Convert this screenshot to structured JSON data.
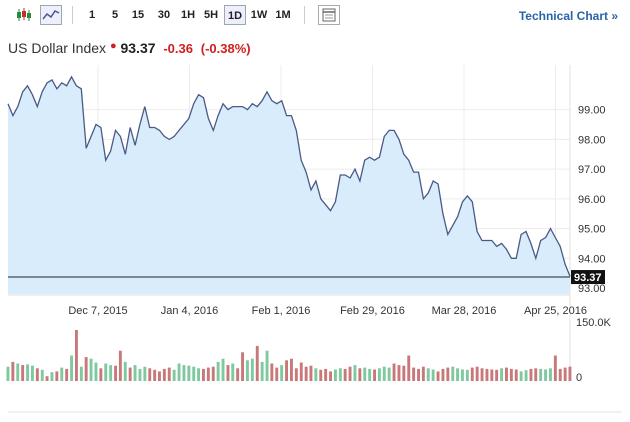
{
  "toolbar": {
    "intervals": [
      "1",
      "5",
      "15",
      "30",
      "1H",
      "5H",
      "1D",
      "1W",
      "1M"
    ],
    "active_interval": "1D",
    "technical_chart_label": "Technical Chart »"
  },
  "quote": {
    "name": "US Dollar Index",
    "price": "93.37",
    "change": "-0.36",
    "change_pct": "(-0.38%)"
  },
  "colors": {
    "line": "#4a5a86",
    "area": "#d8ecfc",
    "up_volume": "#7fc9a0",
    "down_volume": "#c9787a",
    "last_price_bg": "#111111"
  },
  "chart_data": {
    "type": "area",
    "x_ticks": [
      "Dec 7, 2015",
      "Jan 4, 2016",
      "Feb 1, 2016",
      "Feb 29, 2016",
      "Mar 28, 2016",
      "Apr 25, 2016"
    ],
    "y_ticks": [
      "99.00",
      "98.00",
      "97.00",
      "96.00",
      "95.00",
      "94.00",
      "93.00"
    ],
    "ylim": [
      92.8,
      100.5
    ],
    "last_price_label": "93.37",
    "values": [
      99.2,
      98.8,
      99.1,
      99.6,
      99.8,
      99.5,
      99.1,
      99.6,
      99.9,
      100.0,
      99.7,
      99.9,
      99.8,
      100.1,
      99.8,
      99.7,
      97.7,
      98.1,
      98.5,
      98.4,
      97.3,
      97.6,
      98.3,
      98.1,
      97.5,
      98.4,
      97.8,
      98.5,
      99.1,
      98.4,
      98.4,
      98.3,
      98.1,
      98.0,
      98.1,
      98.3,
      98.5,
      98.7,
      99.2,
      99.5,
      99.4,
      98.7,
      98.3,
      98.8,
      99.2,
      99.0,
      99.1,
      99.1,
      99.1,
      99.0,
      99.2,
      99.1,
      99.3,
      99.6,
      99.3,
      99.2,
      99.3,
      98.8,
      98.8,
      98.3,
      97.3,
      96.9,
      96.3,
      96.6,
      96.0,
      95.8,
      95.6,
      95.9,
      96.8,
      96.8,
      96.7,
      97.0,
      96.6,
      97.3,
      97.4,
      97.3,
      97.4,
      98.1,
      98.3,
      98.3,
      98.0,
      97.5,
      97.3,
      96.9,
      96.9,
      96.0,
      96.2,
      96.6,
      96.5,
      95.5,
      94.8,
      95.1,
      95.4,
      95.9,
      96.1,
      95.9,
      94.9,
      94.6,
      94.6,
      94.6,
      94.4,
      94.5,
      94.3,
      94.0,
      94.0,
      94.8,
      94.9,
      94.5,
      94.0,
      94.6,
      94.7,
      95.0,
      94.7,
      94.4,
      93.8,
      93.4
    ],
    "volume_ylim": [
      0,
      150000
    ],
    "volume_ticks": [
      "150.0K",
      "0"
    ],
    "volumes": [
      45,
      60,
      55,
      50,
      52,
      48,
      40,
      35,
      15,
      28,
      30,
      42,
      38,
      80,
      160,
      45,
      75,
      70,
      58,
      40,
      55,
      50,
      48,
      95,
      60,
      42,
      50,
      38,
      45,
      40,
      35,
      30,
      38,
      42,
      35,
      55,
      50,
      48,
      45,
      40,
      38,
      42,
      45,
      60,
      70,
      50,
      55,
      40,
      90,
      65,
      70,
      110,
      60,
      95,
      55,
      42,
      50,
      65,
      70,
      40,
      58,
      45,
      48,
      40,
      35,
      38,
      30,
      36,
      40,
      38,
      45,
      50,
      40,
      42,
      38,
      36,
      40,
      45,
      42,
      55,
      50,
      48,
      80,
      42,
      38,
      45,
      40,
      36,
      30,
      38,
      42,
      45,
      40,
      36,
      35,
      42,
      45,
      40,
      38,
      36,
      35,
      40,
      42,
      38,
      36,
      30,
      34,
      38,
      40,
      38,
      36,
      40,
      80,
      38,
      42,
      45
    ],
    "volume_up": [
      1,
      0,
      1,
      0,
      1,
      1,
      0,
      1,
      0,
      1,
      0,
      1,
      0,
      1,
      0,
      1,
      0,
      1,
      1,
      0,
      1,
      1,
      0,
      0,
      1,
      0,
      1,
      1,
      1,
      0,
      0,
      0,
      0,
      0,
      1,
      1,
      1,
      1,
      1,
      1,
      0,
      0,
      0,
      1,
      1,
      0,
      1,
      0,
      0,
      1,
      1,
      0,
      1,
      1,
      0,
      0,
      1,
      0,
      0,
      0,
      0,
      0,
      0,
      1,
      0,
      0,
      0,
      1,
      1,
      0,
      0,
      1,
      0,
      1,
      1,
      0,
      1,
      1,
      1,
      0,
      0,
      0,
      0,
      0,
      0,
      0,
      1,
      1,
      0,
      0,
      0,
      1,
      1,
      1,
      1,
      0,
      0,
      0,
      0,
      0,
      0,
      1,
      0,
      0,
      0,
      1,
      1,
      0,
      0,
      1,
      1,
      1,
      0,
      0,
      0,
      0
    ]
  }
}
